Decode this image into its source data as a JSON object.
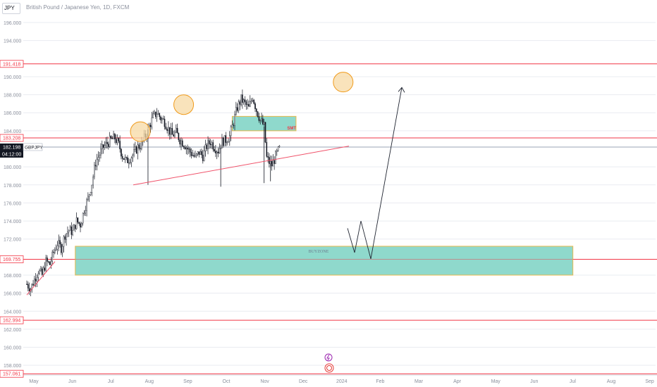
{
  "header": {
    "symbol": "JPY",
    "title": "British Pound / Japanese Yen, 1D, FXCM"
  },
  "colors": {
    "candle": "#131722",
    "level_line": "#f23645",
    "zone_fill": "#8fd9cc",
    "zone_border": "#e8b84a",
    "circle_fill": "#f7d9a4",
    "circle_stroke": "#f09a1a",
    "trendline": "#f0526a",
    "grid": "#e9ecf1",
    "axis_text": "#8a8f9c",
    "label_dark": "#131722"
  },
  "chart_data": {
    "type": "candlestick",
    "symbol": "GBPJPY",
    "timeframe": "1D",
    "source": "FXCM",
    "ylim": [
      157,
      198.5
    ],
    "y_ticks": [
      "196.000",
      "194.000",
      "190.000",
      "188.000",
      "186.000",
      "184.000",
      "180.000",
      "178.000",
      "176.000",
      "174.000",
      "172.000",
      "168.000",
      "166.000",
      "164.000",
      "162.000",
      "160.000",
      "158.000"
    ],
    "x_ticks": [
      "May",
      "Jun",
      "Jul",
      "Aug",
      "Sep",
      "Oct",
      "Nov",
      "Dec",
      "2024",
      "Feb",
      "Mar",
      "Apr",
      "May",
      "Jun",
      "Jul",
      "Aug",
      "Sep"
    ],
    "price_labels": [
      {
        "text": "191.418",
        "value": 191.418
      },
      {
        "text": "183.208",
        "value": 183.208
      },
      {
        "text": "169.755",
        "value": 169.755
      },
      {
        "text": "162.994",
        "value": 162.994
      },
      {
        "text": "157.061",
        "value": 157.061
      }
    ],
    "horizontal_levels": [
      191.418,
      183.208,
      169.755,
      162.994,
      157.061
    ],
    "current_price": {
      "text": "182.198",
      "value": 182.198,
      "countdown": "04:12:00",
      "symbol": "GBPJPY"
    },
    "close_path": [
      [
        0,
        167.0
      ],
      [
        3,
        166.5
      ],
      [
        6,
        167.5
      ],
      [
        9,
        168.5
      ],
      [
        12,
        168.0
      ],
      [
        15,
        169.5
      ],
      [
        18,
        169.2
      ],
      [
        21,
        170.5
      ],
      [
        24,
        171.5
      ],
      [
        27,
        171.0
      ],
      [
        30,
        172.5
      ],
      [
        33,
        173.0
      ],
      [
        36,
        172.8
      ],
      [
        39,
        174.0
      ],
      [
        42,
        173.6
      ],
      [
        45,
        175.3
      ],
      [
        48,
        176.5
      ],
      [
        51,
        178.2
      ],
      [
        54,
        180.5
      ],
      [
        57,
        181.4
      ],
      [
        60,
        182.2
      ],
      [
        63,
        182.6
      ],
      [
        66,
        183.0
      ],
      [
        69,
        183.2
      ],
      [
        72,
        182.5
      ],
      [
        75,
        181.2
      ],
      [
        78,
        180.6
      ],
      [
        81,
        181.0
      ],
      [
        84,
        181.5
      ],
      [
        87,
        182.2
      ],
      [
        90,
        182.5
      ],
      [
        93,
        183.5
      ],
      [
        96,
        184.5
      ],
      [
        99,
        185.5
      ],
      [
        102,
        186.0
      ],
      [
        105,
        185.4
      ],
      [
        108,
        185.0
      ],
      [
        111,
        184.2
      ],
      [
        114,
        183.5
      ],
      [
        117,
        183.8
      ],
      [
        120,
        183.0
      ],
      [
        123,
        182.6
      ],
      [
        126,
        182.0
      ],
      [
        129,
        181.5
      ],
      [
        132,
        181.0
      ],
      [
        135,
        181.6
      ],
      [
        138,
        181.2
      ],
      [
        141,
        182.3
      ],
      [
        144,
        182.8
      ],
      [
        147,
        182.2
      ],
      [
        150,
        181.8
      ],
      [
        153,
        182.8
      ],
      [
        156,
        183.0
      ],
      [
        159,
        183.4
      ],
      [
        162,
        185.0
      ],
      [
        165,
        186.6
      ],
      [
        168,
        187.5
      ],
      [
        171,
        187.0
      ],
      [
        174,
        186.5
      ],
      [
        177,
        187.8
      ],
      [
        180,
        186.3
      ],
      [
        183,
        185.2
      ],
      [
        186,
        184.5
      ],
      [
        188,
        181.0
      ],
      [
        190,
        180.5
      ],
      [
        192,
        180.2
      ],
      [
        194,
        180.8
      ],
      [
        196,
        181.5
      ],
      [
        198,
        182.0
      ]
    ],
    "circles": [
      {
        "x": 42,
        "y": 183.9
      },
      {
        "x": 76,
        "y": 186.9
      },
      {
        "x": 201,
        "y": 189.4
      }
    ],
    "zones": [
      {
        "label": "SMT",
        "x0": 161,
        "x1": 211,
        "y0": 184.0,
        "y1": 185.6
      },
      {
        "label": "BUYZONE",
        "x0": 38,
        "x1": 428,
        "y0": 168.0,
        "y1": 171.2
      }
    ],
    "annotations": [
      "SMT",
      "BUYZONE"
    ],
    "trendlines": [
      {
        "points": [
          [
            0,
            165.8
          ],
          [
            33,
            169.5
          ]
        ]
      },
      {
        "points": [
          [
            111,
            178.0
          ],
          [
            198,
            182.3
          ]
        ]
      }
    ],
    "projection": {
      "points": [
        [
          231,
          173.2
        ],
        [
          236,
          170.5
        ],
        [
          241,
          174.0
        ],
        [
          247,
          169.8
        ],
        [
          270,
          188.8
        ]
      ],
      "arrow": true
    }
  }
}
